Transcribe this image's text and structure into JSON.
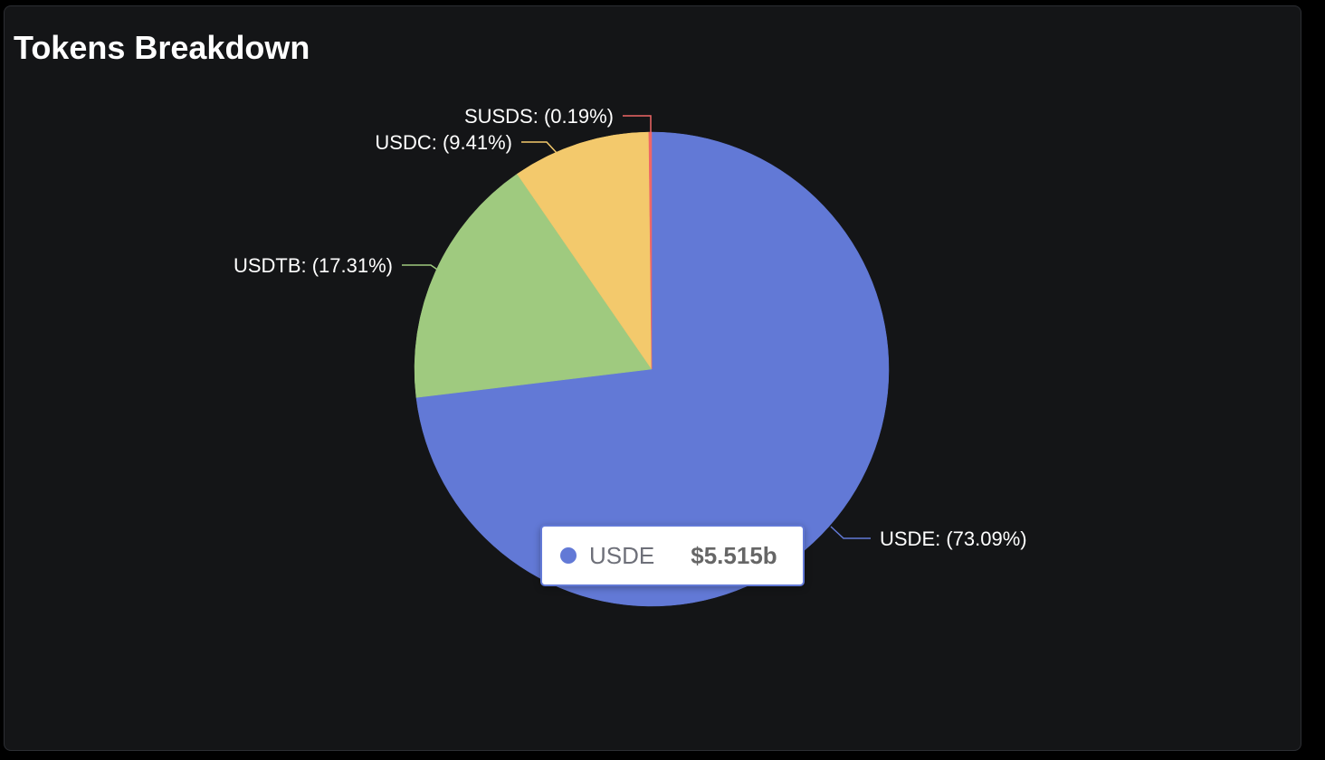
{
  "panel": {
    "title": "Tokens Breakdown"
  },
  "chart_data": {
    "type": "pie",
    "title": "Tokens Breakdown",
    "series": [
      {
        "name": "USDE",
        "percent": 73.09,
        "label": "USDE: (73.09%)",
        "color": "#6279d6"
      },
      {
        "name": "USDTB",
        "percent": 17.31,
        "label": "USDTB: (17.31%)",
        "color": "#9fca7f"
      },
      {
        "name": "USDC",
        "percent": 9.41,
        "label": "USDC: (9.41%)",
        "color": "#f3c96c"
      },
      {
        "name": "SUSDS",
        "percent": 0.19,
        "label": "SUSDS: (0.19%)",
        "color": "#ef6666"
      }
    ],
    "tooltip": {
      "name": "USDE",
      "value": "$5.515b",
      "color": "#6279d6"
    }
  }
}
